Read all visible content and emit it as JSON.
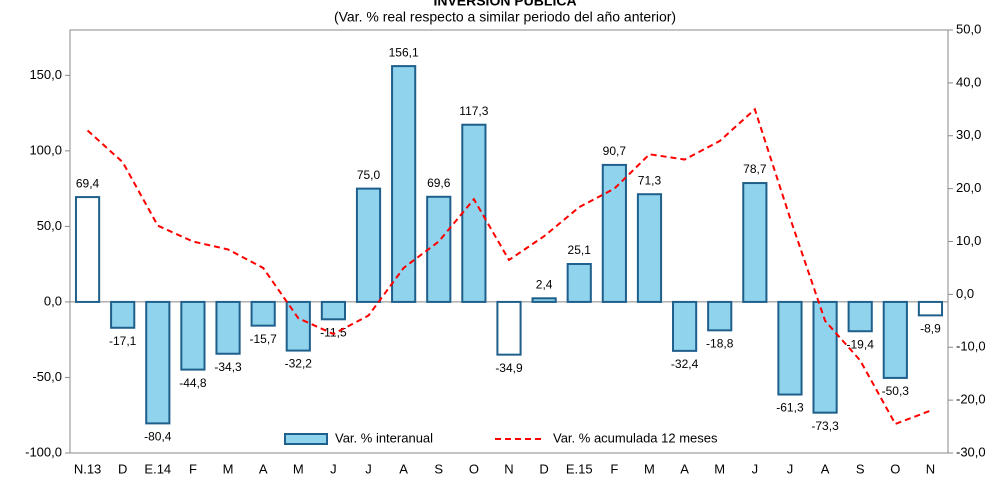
{
  "chart_data": {
    "type": "bar",
    "title": "INVERSIÓN PÚBLICA",
    "subtitle": "(Var. % real respecto a similar periodo del año anterior)",
    "categories": [
      "N.13",
      "D",
      "E.14",
      "F",
      "M",
      "A",
      "M",
      "J",
      "J",
      "A",
      "S",
      "O",
      "N",
      "D",
      "E.15",
      "F",
      "M",
      "A",
      "M",
      "J",
      "J",
      "A",
      "S",
      "O",
      "N"
    ],
    "series": [
      {
        "name": "Var. % interanual",
        "type": "bar",
        "color": "#8fd3ec",
        "colors": [
          "#ffffff",
          "#8fd3ec",
          "#8fd3ec",
          "#8fd3ec",
          "#8fd3ec",
          "#8fd3ec",
          "#8fd3ec",
          "#8fd3ec",
          "#8fd3ec",
          "#8fd3ec",
          "#8fd3ec",
          "#8fd3ec",
          "#ffffff",
          "#8fd3ec",
          "#8fd3ec",
          "#8fd3ec",
          "#8fd3ec",
          "#8fd3ec",
          "#8fd3ec",
          "#8fd3ec",
          "#8fd3ec",
          "#8fd3ec",
          "#8fd3ec",
          "#8fd3ec",
          "#ffffff"
        ],
        "values": [
          69.4,
          -17.1,
          -80.4,
          -44.8,
          -34.3,
          -15.7,
          -32.2,
          -11.5,
          75.0,
          156.1,
          69.6,
          117.3,
          -34.9,
          2.4,
          25.1,
          90.7,
          71.3,
          -32.4,
          -18.8,
          78.7,
          -61.3,
          -73.3,
          -19.4,
          -50.3,
          -8.9
        ],
        "value_labels": [
          "69,4",
          "-17,1",
          "-80,4",
          "-44,8",
          "-34,3",
          "-15,7",
          "-32,2",
          "-11,5",
          "75,0",
          "156,1",
          "69,6",
          "117,3",
          "-34,9",
          "2,4",
          "25,1",
          "90,7",
          "71,3",
          "-32,4",
          "-18,8",
          "78,7",
          "-61,3",
          "-73,3",
          "-19,4",
          "-50,3",
          "-8,9"
        ]
      },
      {
        "name": "Var. % acumulada 12 meses",
        "type": "line",
        "axis": "y2",
        "color": "#ff0000",
        "values": [
          31,
          25,
          13,
          10,
          8.5,
          5,
          -4.5,
          -7.5,
          -4,
          5,
          10,
          18,
          6.5,
          11,
          16.5,
          20,
          26.5,
          25.5,
          29,
          35,
          14.5,
          -5,
          -12.5,
          -24.5,
          -22
        ]
      }
    ],
    "ylim": [
      -100,
      180
    ],
    "yticks": [
      {
        "value": -100,
        "label": "-100,0"
      },
      {
        "value": -50,
        "label": "-50,0"
      },
      {
        "value": 0,
        "label": "0,0"
      },
      {
        "value": 50,
        "label": "50,0"
      },
      {
        "value": 100,
        "label": "100,0"
      },
      {
        "value": 150,
        "label": "150,0"
      }
    ],
    "y2lim": [
      -30,
      50
    ],
    "y2ticks": [
      {
        "value": -30,
        "label": "-30,0"
      },
      {
        "value": -20,
        "label": "-20,0"
      },
      {
        "value": -10,
        "label": "-10,0"
      },
      {
        "value": 0,
        "label": "0,0"
      },
      {
        "value": 10,
        "label": "10,0"
      },
      {
        "value": 20,
        "label": "20,0"
      },
      {
        "value": 30,
        "label": "30,0"
      },
      {
        "value": 40,
        "label": "40,0"
      },
      {
        "value": 50,
        "label": "50,0"
      }
    ],
    "legend": "bottom"
  }
}
